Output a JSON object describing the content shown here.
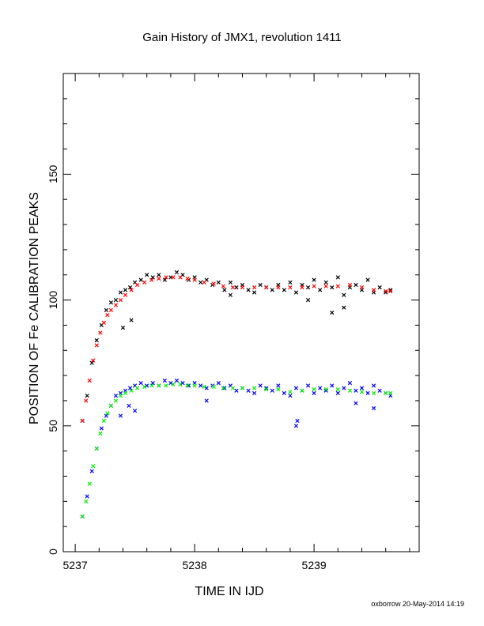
{
  "chart_data": {
    "type": "scatter",
    "title": "Gain History of JMX1, revolution 1411",
    "xlabel": "TIME IN IJD",
    "ylabel": "POSITION OF Fe CALIBRATION PEAKS",
    "xlim": [
      5236.9,
      5239.88
    ],
    "ylim": [
      0,
      190
    ],
    "x_ticks": [
      5237,
      5238,
      5239
    ],
    "y_ticks": [
      0,
      50,
      100,
      150
    ],
    "grid": false,
    "series": [
      {
        "color": "#000000",
        "marker": "x",
        "x": [
          5237.06,
          5237.1,
          5237.14,
          5237.18,
          5237.22,
          5237.26,
          5237.3,
          5237.34,
          5237.38,
          5237.42,
          5237.46,
          5237.5,
          5237.55,
          5237.6,
          5237.65,
          5237.7,
          5237.75,
          5237.8,
          5237.85,
          5237.9,
          5237.95,
          5238.0,
          5238.05,
          5238.1,
          5238.15,
          5238.2,
          5238.25,
          5238.3,
          5238.35,
          5238.4,
          5238.45,
          5238.5,
          5238.55,
          5238.6,
          5238.65,
          5238.7,
          5238.75,
          5238.8,
          5238.85,
          5238.9,
          5238.95,
          5239.0,
          5239.05,
          5239.1,
          5239.15,
          5239.2,
          5239.25,
          5239.3,
          5239.35,
          5239.4,
          5239.45,
          5239.5,
          5239.55,
          5239.6,
          5239.64,
          5237.4,
          5237.47,
          5238.3,
          5238.95,
          5239.15,
          5239.25
        ],
        "y": [
          52,
          62,
          75,
          84,
          90,
          96,
          99,
          100,
          103,
          104,
          105,
          107,
          108,
          110,
          109,
          110,
          108,
          109,
          111,
          110,
          108,
          109,
          107,
          108,
          106,
          107,
          104,
          107,
          105,
          106,
          104,
          103,
          106,
          105,
          104,
          106,
          104,
          107,
          103,
          106,
          105,
          108,
          104,
          107,
          105,
          109,
          102,
          105,
          106,
          104,
          108,
          103,
          105,
          103,
          104,
          89,
          92,
          102,
          100,
          95,
          97
        ]
      },
      {
        "color": "#ff0000",
        "marker": "x",
        "x": [
          5237.06,
          5237.09,
          5237.12,
          5237.15,
          5237.18,
          5237.21,
          5237.24,
          5237.27,
          5237.3,
          5237.34,
          5237.38,
          5237.42,
          5237.47,
          5237.52,
          5237.58,
          5237.64,
          5237.7,
          5237.76,
          5237.82,
          5237.88,
          5237.94,
          5238.0,
          5238.08,
          5238.16,
          5238.24,
          5238.32,
          5238.4,
          5238.5,
          5238.6,
          5238.7,
          5238.8,
          5238.9,
          5239.0,
          5239.1,
          5239.2,
          5239.3,
          5239.4,
          5239.5,
          5239.6,
          5239.64
        ],
        "y": [
          52,
          60,
          68,
          76,
          82,
          87,
          91,
          94,
          96,
          98,
          100,
          102,
          104,
          106,
          107,
          108,
          108.5,
          109,
          109,
          109,
          108.5,
          108,
          107,
          106.5,
          105.5,
          105,
          105,
          105,
          105,
          105,
          105,
          105,
          105.5,
          105.5,
          105.5,
          106,
          105,
          104,
          103.5,
          103.5
        ]
      },
      {
        "color": "#0000ff",
        "marker": "x",
        "x": [
          5237.06,
          5237.1,
          5237.14,
          5237.18,
          5237.22,
          5237.26,
          5237.3,
          5237.34,
          5237.38,
          5237.42,
          5237.46,
          5237.5,
          5237.55,
          5237.6,
          5237.65,
          5237.7,
          5237.75,
          5237.8,
          5237.85,
          5237.9,
          5237.95,
          5238.0,
          5238.05,
          5238.1,
          5238.15,
          5238.2,
          5238.25,
          5238.3,
          5238.35,
          5238.4,
          5238.45,
          5238.5,
          5238.55,
          5238.6,
          5238.65,
          5238.7,
          5238.75,
          5238.8,
          5238.85,
          5238.9,
          5238.95,
          5239.0,
          5239.05,
          5239.1,
          5239.15,
          5239.2,
          5239.25,
          5239.3,
          5239.35,
          5239.4,
          5239.45,
          5239.5,
          5239.55,
          5239.6,
          5239.64,
          5237.38,
          5237.45,
          5237.5,
          5238.1,
          5238.85,
          5238.86,
          5239.35,
          5239.5
        ],
        "y": [
          14,
          22,
          32,
          41,
          49,
          54,
          58,
          62,
          63,
          64,
          65,
          66,
          67,
          66,
          67,
          66,
          68,
          67,
          68,
          67,
          66,
          67,
          66,
          65,
          66,
          67,
          65,
          66,
          64,
          65,
          64,
          63,
          66,
          65,
          64,
          66,
          63,
          62,
          65,
          64,
          66,
          63,
          65,
          64,
          66,
          63,
          65,
          67,
          64,
          65,
          63,
          66,
          64,
          63,
          62,
          54,
          58,
          56,
          60,
          50,
          52,
          59,
          57
        ]
      },
      {
        "color": "#00ee00",
        "marker": "x",
        "x": [
          5237.06,
          5237.09,
          5237.12,
          5237.15,
          5237.18,
          5237.21,
          5237.24,
          5237.27,
          5237.3,
          5237.34,
          5237.38,
          5237.42,
          5237.47,
          5237.52,
          5237.58,
          5237.64,
          5237.7,
          5237.76,
          5237.82,
          5237.88,
          5237.94,
          5238.0,
          5238.08,
          5238.16,
          5238.24,
          5238.32,
          5238.4,
          5238.5,
          5238.6,
          5238.7,
          5238.8,
          5238.9,
          5239.0,
          5239.1,
          5239.2,
          5239.3,
          5239.4,
          5239.5,
          5239.6,
          5239.64
        ],
        "y": [
          14,
          20,
          27,
          34,
          41,
          47,
          52,
          55,
          58,
          60,
          62,
          63,
          64,
          65,
          65.5,
          66,
          66,
          66,
          66.5,
          66.5,
          66,
          66,
          65.5,
          65.5,
          65,
          65,
          65,
          65,
          64.5,
          64.5,
          63.5,
          64,
          64.5,
          64.5,
          64.5,
          64,
          63.5,
          63,
          63,
          63
        ]
      }
    ]
  },
  "footer": {
    "credit": "oxborrow 20-May-2014 14:19"
  }
}
